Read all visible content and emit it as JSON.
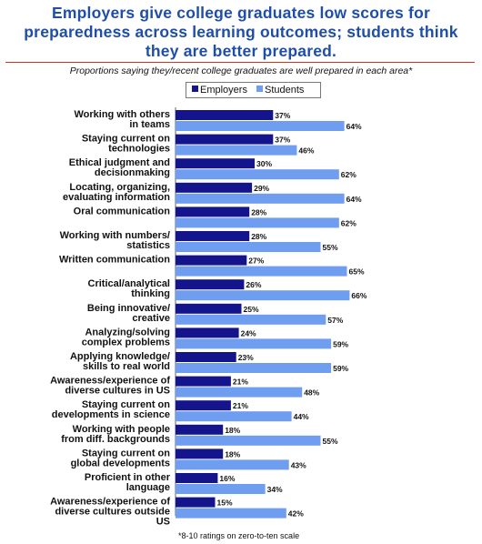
{
  "title": "Employers give college graduates low scores for preparedness across learning outcomes; students think they are better prepared.",
  "subtitle": "Proportions saying they/recent college graduates are well prepared in each area*",
  "footnote": "*8-10 ratings on zero-to-ten scale",
  "legend": [
    {
      "name": "Employers",
      "color": "#14148c"
    },
    {
      "name": "Students",
      "color": "#6f9df0"
    }
  ],
  "chart_data": {
    "type": "bar",
    "orientation": "horizontal",
    "title": "Employers give college graduates low scores for preparedness across learning outcomes; students think they are better prepared.",
    "subtitle": "Proportions saying they/recent college graduates are well prepared in each area*",
    "value_suffix": "%",
    "xlim": [
      0,
      100
    ],
    "grid": false,
    "legend_position": "top",
    "categories": [
      [
        "Working with others",
        "in teams"
      ],
      [
        "Staying current on",
        "technologies"
      ],
      [
        "Ethical judgment and",
        "decisionmaking"
      ],
      [
        "Locating, organizing,",
        "evaluating information"
      ],
      [
        "Oral communication"
      ],
      [
        "Working with numbers/",
        "statistics"
      ],
      [
        "Written communication"
      ],
      [
        "Critical/analytical",
        "thinking"
      ],
      [
        "Being innovative/",
        "creative"
      ],
      [
        "Analyzing/solving",
        "complex problems"
      ],
      [
        "Applying knowledge/",
        "skills to real world"
      ],
      [
        "Awareness/experience of",
        "diverse cultures in US"
      ],
      [
        "Staying current on",
        "developments in science"
      ],
      [
        "Working with people",
        "from diff. backgrounds"
      ],
      [
        "Staying current on",
        "global developments"
      ],
      [
        "Proficient in other",
        "language"
      ],
      [
        "Awareness/experience of",
        "diverse cultures outside",
        "US"
      ]
    ],
    "series": [
      {
        "name": "Employers",
        "color": "#14148c",
        "values": [
          37,
          37,
          30,
          29,
          28,
          28,
          27,
          26,
          25,
          24,
          23,
          21,
          21,
          18,
          18,
          16,
          15
        ]
      },
      {
        "name": "Students",
        "color": "#6f9df0",
        "values": [
          64,
          46,
          62,
          64,
          62,
          55,
          65,
          66,
          57,
          59,
          59,
          48,
          44,
          55,
          43,
          34,
          42
        ]
      }
    ]
  }
}
